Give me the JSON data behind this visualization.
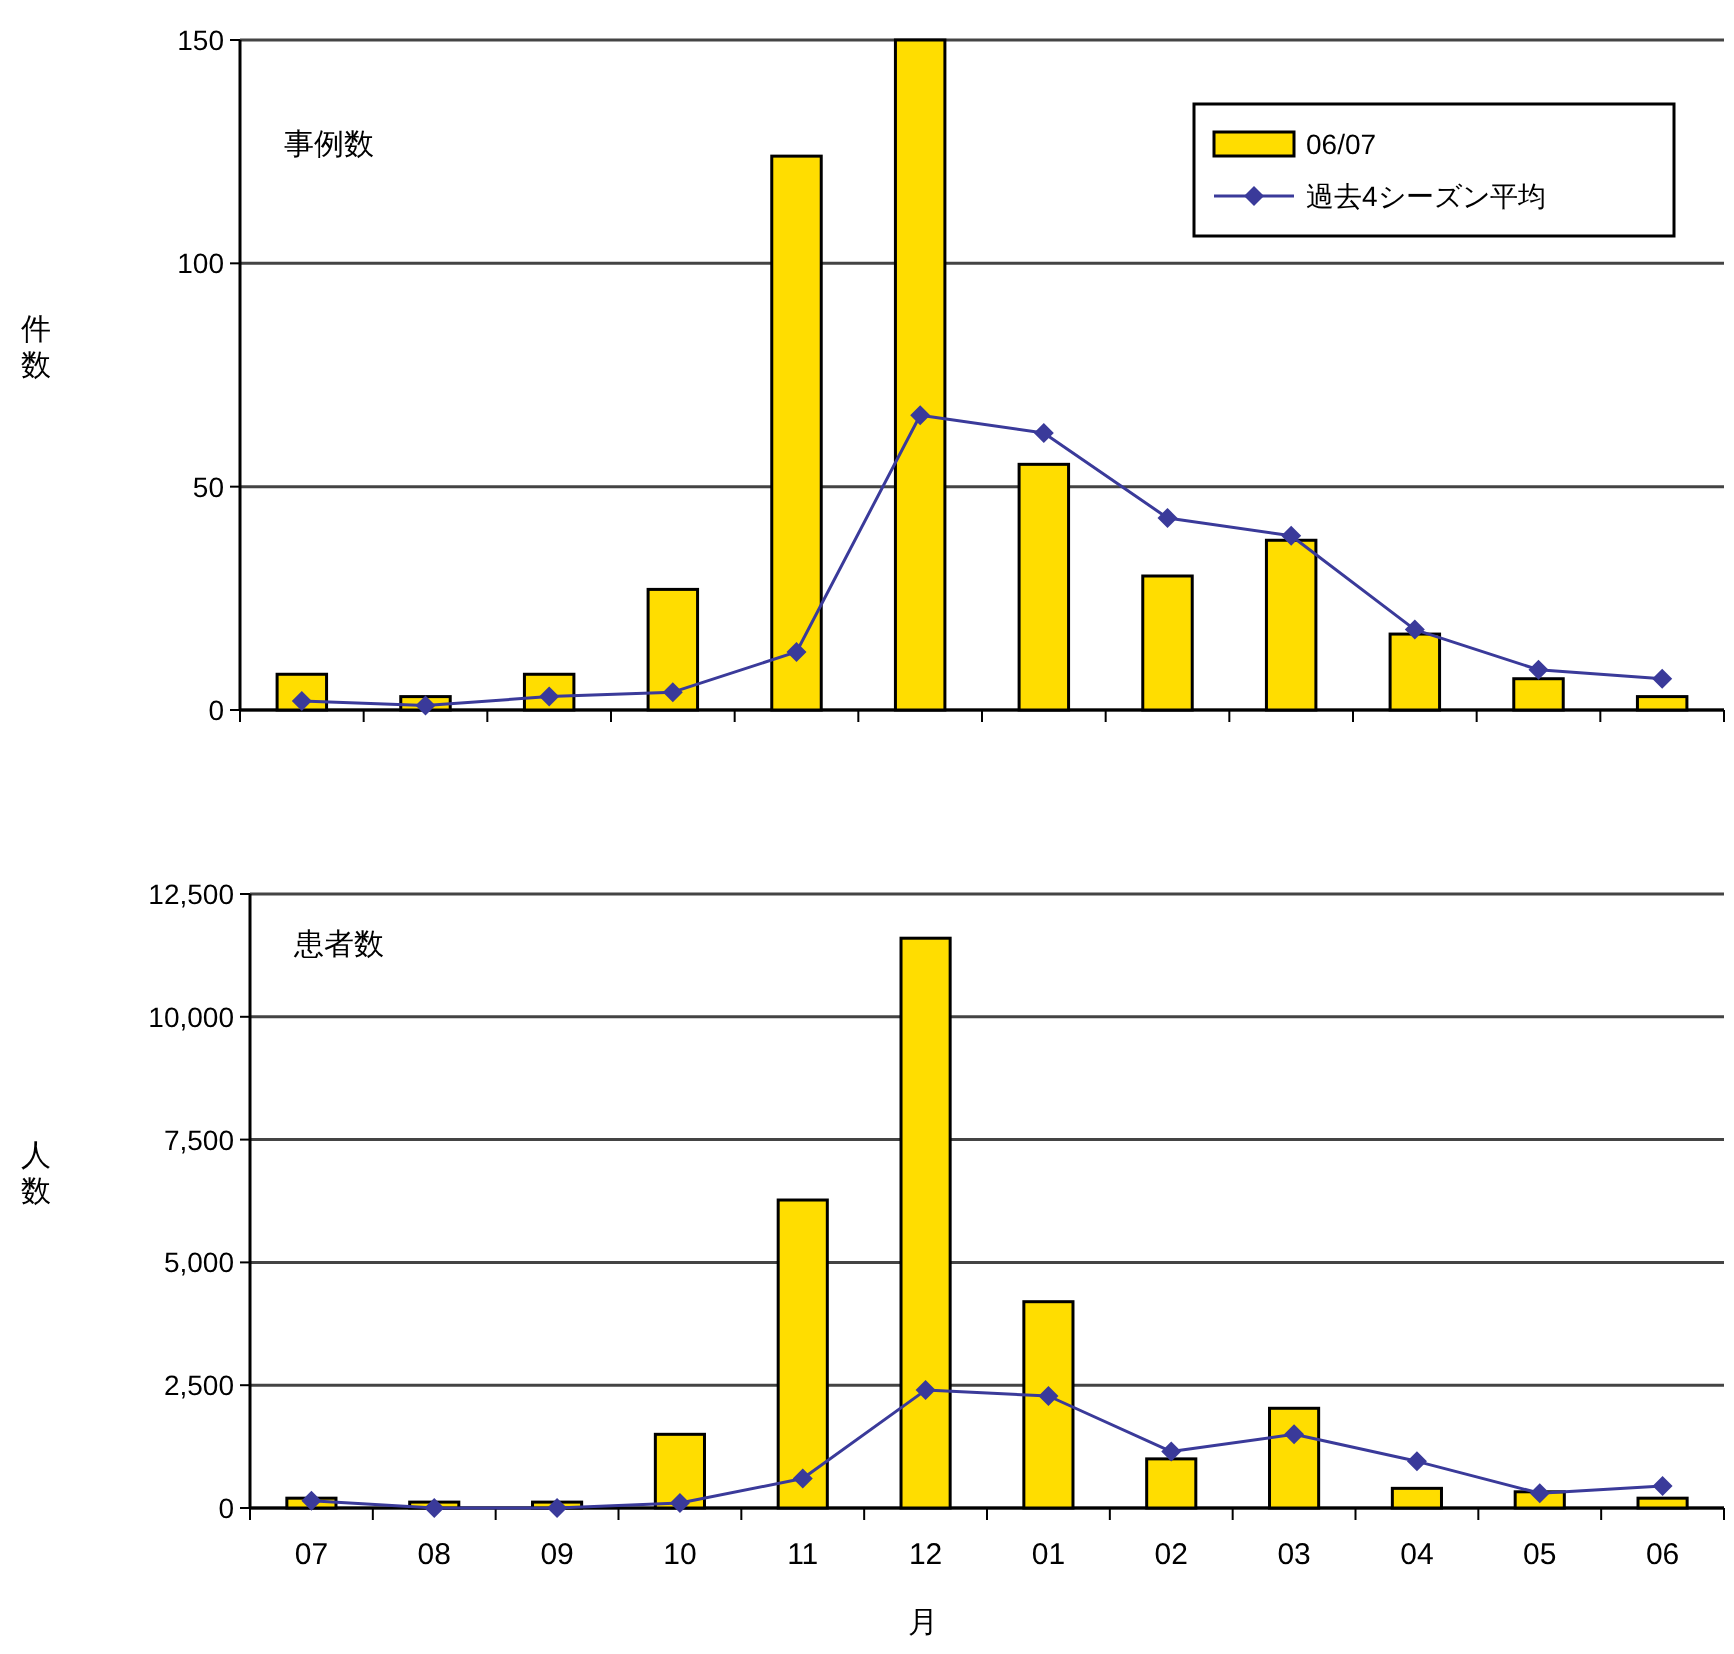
{
  "chart_data": [
    {
      "type": "bar",
      "title": "事例数",
      "ylabel": "件数",
      "categories": [
        null,
        null,
        null,
        null,
        null,
        null,
        null,
        null,
        null,
        null,
        null,
        null
      ],
      "ylim": [
        0,
        150
      ],
      "yticks": [
        0,
        50,
        100,
        150
      ],
      "grid": "y",
      "legend": "top right",
      "tick_labels": "y",
      "series": [
        {
          "name": "06/07",
          "color": "#ffdd00",
          "values": [
            8,
            3,
            8,
            27,
            124,
            150,
            55,
            30,
            38,
            17,
            7,
            3
          ]
        },
        {
          "name": "過去4シーズン平均",
          "type": "line",
          "marker": "diamond",
          "color": "#3a3a9a",
          "values": [
            2,
            1,
            3,
            4,
            13,
            66,
            62,
            43,
            39,
            18,
            9,
            7
          ]
        }
      ]
    },
    {
      "type": "bar",
      "title": "患者数",
      "ylabel": "人数",
      "xlabel": "月",
      "categories": [
        "07",
        "08",
        "09",
        "10",
        "11",
        "12",
        "01",
        "02",
        "03",
        "04",
        "05",
        "06"
      ],
      "ylim": [
        0,
        12500
      ],
      "yticks": [
        0,
        {
          "value": 2500,
          "label": "2,500"
        },
        {
          "value": 5000,
          "label": "5,000"
        },
        {
          "value": 7500,
          "label": "7,500"
        },
        {
          "value": 10000,
          "label": "10,000"
        },
        {
          "value": 12500,
          "label": "12,500"
        }
      ],
      "grid": "y",
      "series": [
        {
          "color": "#ffdd00",
          "values": [
            200,
            120,
            120,
            1500,
            6270,
            11600,
            4200,
            1000,
            2030,
            400,
            330,
            200
          ]
        },
        {
          "type": "line",
          "marker": "diamond",
          "color": "#3a3a9a",
          "values": [
            150,
            0,
            0,
            100,
            600,
            2400,
            2280,
            1150,
            1500,
            950,
            300,
            450
          ]
        }
      ]
    }
  ]
}
